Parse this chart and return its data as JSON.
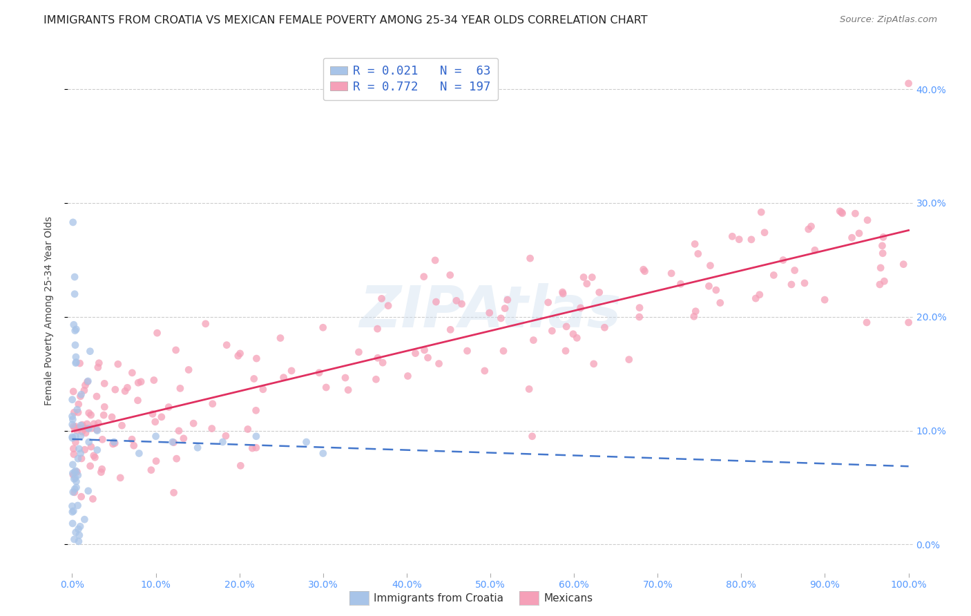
{
  "title": "IMMIGRANTS FROM CROATIA VS MEXICAN FEMALE POVERTY AMONG 25-34 YEAR OLDS CORRELATION CHART",
  "source": "Source: ZipAtlas.com",
  "ylabel": "Female Poverty Among 25-34 Year Olds",
  "xlim": [
    -0.005,
    1.005
  ],
  "ylim": [
    -0.025,
    0.435
  ],
  "croatia_R": 0.021,
  "croatia_N": 63,
  "mexican_R": 0.772,
  "mexican_N": 197,
  "croatia_color": "#a8c4e8",
  "mexican_color": "#f5a0b8",
  "trendline_croatia_color": "#4477cc",
  "trendline_mexican_color": "#e03060",
  "background_color": "#ffffff",
  "grid_color": "#cccccc",
  "yticks": [
    0.0,
    0.1,
    0.2,
    0.3,
    0.4
  ],
  "xticks": [
    0.0,
    0.1,
    0.2,
    0.3,
    0.4,
    0.5,
    0.6,
    0.7,
    0.8,
    0.9,
    1.0
  ],
  "tick_color": "#5599ff",
  "legend_text_color": "#3366cc",
  "title_fontsize": 11.5,
  "source_fontsize": 9.5,
  "axis_label_fontsize": 10,
  "scatter_size": 60,
  "scatter_alpha": 0.75,
  "watermark_text": "ZIPAtlas",
  "watermark_fontsize": 60,
  "watermark_color": "#ccddee",
  "watermark_alpha": 0.4
}
